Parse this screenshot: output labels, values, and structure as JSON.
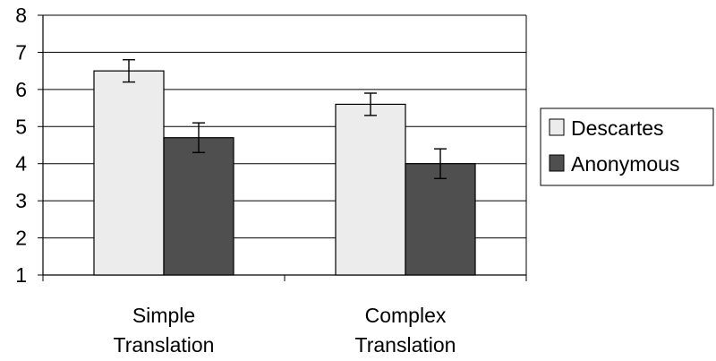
{
  "chart_data": {
    "type": "bar",
    "categories": [
      [
        "Simple",
        "Translation"
      ],
      [
        "Complex",
        "Translation"
      ]
    ],
    "series": [
      {
        "name": "Descartes",
        "values": [
          6.5,
          5.6
        ],
        "errors": [
          0.3,
          0.3
        ],
        "color": "#ececec"
      },
      {
        "name": "Anonymous",
        "values": [
          4.7,
          4.0
        ],
        "errors": [
          0.4,
          0.4
        ],
        "color": "#4f4f4f"
      }
    ],
    "title": "",
    "xlabel": "",
    "ylabel": "",
    "ylim": [
      1,
      8
    ],
    "yticks": [
      "1",
      "2",
      "3",
      "4",
      "5",
      "6",
      "7",
      "8"
    ],
    "grid": true,
    "legend_position": "right"
  }
}
